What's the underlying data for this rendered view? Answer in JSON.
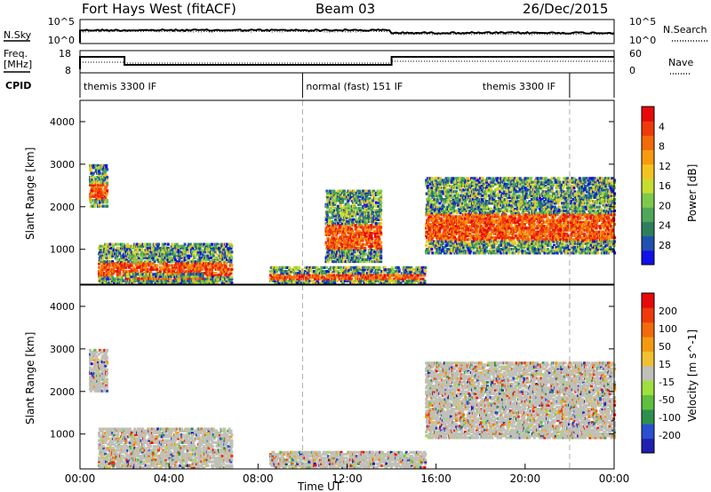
{
  "header": {
    "site": "Fort Hays West (fitACF)",
    "beam": "Beam 03",
    "date": "26/Dec/2015"
  },
  "top_panels": {
    "nsky": {
      "left_label": "N.Sky",
      "right_label": "N.Search",
      "left_ticks": [
        "10^5",
        "10^0"
      ],
      "right_ticks": [
        "10^5",
        "10^0"
      ]
    },
    "freq": {
      "left_label_1": "Freq.",
      "left_label_2": "[MHz]",
      "left_ticks": [
        "18",
        "8"
      ],
      "right_ticks": [
        "60",
        "0"
      ],
      "right_label": "Nave"
    },
    "cpid": {
      "label": "CPID",
      "modes": [
        {
          "name": "themis 3300 IF",
          "start_hour": 0,
          "end_hour": 10
        },
        {
          "name": "normal (fast) 151 IF",
          "start_hour": 10,
          "end_hour": 22
        },
        {
          "name": "themis 3300 IF",
          "start_hour": 22,
          "end_hour": 24
        }
      ]
    }
  },
  "chart_data": [
    {
      "type": "heatmap",
      "title": "",
      "xlabel": "",
      "ylabel": "Slant Range [km]",
      "xlim": [
        0,
        24
      ],
      "ylim": [
        180,
        4500
      ],
      "yticks": [
        1000,
        2000,
        3000,
        4000
      ],
      "colorbar": {
        "label": "Power [dB]",
        "ticks": [
          "4",
          "8",
          "12",
          "16",
          "20",
          "24",
          "28"
        ],
        "colors": [
          "#1010e8",
          "#2050b0",
          "#2f7f5f",
          "#4fa85a",
          "#7ec94c",
          "#c8dc30",
          "#f5c320",
          "#f79a10",
          "#f26a0a",
          "#ef3a0a",
          "#e80a0a"
        ]
      },
      "echo_regions": [
        {
          "t0": 0.4,
          "t1": 1.2,
          "r0": 2000,
          "r1": 3000
        },
        {
          "t0": 0.8,
          "t1": 6.8,
          "r0": 200,
          "r1": 1150
        },
        {
          "t0": 2.0,
          "t1": 5.5,
          "r0": 250,
          "r1": 450
        },
        {
          "t0": 8.5,
          "t1": 15.5,
          "r0": 200,
          "r1": 600
        },
        {
          "t0": 11.0,
          "t1": 13.5,
          "r0": 700,
          "r1": 2400
        },
        {
          "t0": 15.5,
          "t1": 24.0,
          "r0": 900,
          "r1": 2700
        }
      ]
    },
    {
      "type": "heatmap",
      "title": "",
      "xlabel": "Time UT",
      "ylabel": "Slant Range [km]",
      "xlim": [
        0,
        24
      ],
      "ylim": [
        180,
        4500
      ],
      "yticks": [
        1000,
        2000,
        3000,
        4000
      ],
      "xticks": [
        "00:00",
        "04:00",
        "08:00",
        "12:00",
        "16:00",
        "20:00",
        "00:00"
      ],
      "colorbar": {
        "label": "Velocity [m s^-1]",
        "ticks": [
          "200",
          "100",
          "50",
          "15",
          "-15",
          "-50",
          "-100",
          "-200"
        ],
        "colors": [
          "#2020b0",
          "#2a4fd0",
          "#2f8f4f",
          "#5fbf3f",
          "#9fdf3f",
          "#c0c0b8",
          "#f0c030",
          "#f59a10",
          "#f26a0a",
          "#ef3a0a",
          "#e80a0a"
        ]
      },
      "echo_regions": [
        {
          "t0": 0.4,
          "t1": 1.2,
          "r0": 2000,
          "r1": 3000
        },
        {
          "t0": 0.8,
          "t1": 6.8,
          "r0": 200,
          "r1": 1150
        },
        {
          "t0": 8.5,
          "t1": 15.5,
          "r0": 200,
          "r1": 600
        },
        {
          "t0": 15.5,
          "t1": 24.0,
          "r0": 900,
          "r1": 2700
        }
      ]
    }
  ]
}
